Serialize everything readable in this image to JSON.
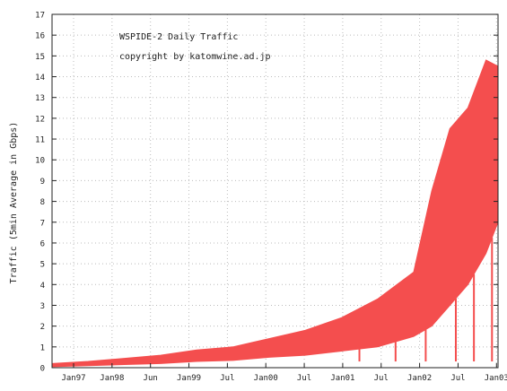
{
  "chart_data": {
    "type": "area",
    "title": "WSPIDE-2 Daily Traffic",
    "subtitle": "copyright by katomwine.ad.jp",
    "xlabel": "",
    "ylabel": "Traffic (5min Average in Gbps)",
    "ylim": [
      0,
      17
    ],
    "yticks": [
      0,
      1,
      2,
      3,
      4,
      5,
      6,
      7,
      8,
      9,
      10,
      11,
      12,
      13,
      14,
      15,
      16,
      17
    ],
    "grid": true,
    "legend": "none",
    "x_tick_labels": [
      "Jan97",
      "Jan98",
      "Jun",
      "Jan99",
      "Jul",
      "Jan00",
      "Jul",
      "Jan01",
      "Jul",
      "Jan02",
      "Jul",
      "Jan03"
    ],
    "series": [
      {
        "kind": "upper-envelope",
        "x": [
          "1997-01",
          "1997-07",
          "1998-01",
          "1998-07",
          "1999-01",
          "1999-07",
          "2000-01",
          "2000-07",
          "2001-01",
          "2001-07",
          "2002-01",
          "2002-04",
          "2002-07",
          "2002-10",
          "2003-01",
          "2003-03"
        ],
        "values": [
          0.2,
          0.3,
          0.45,
          0.6,
          0.85,
          1.0,
          1.4,
          1.8,
          2.4,
          3.3,
          4.6,
          8.5,
          11.5,
          12.5,
          14.8,
          14.5
        ]
      },
      {
        "kind": "lower-envelope",
        "x": [
          "1997-01",
          "1997-07",
          "1998-01",
          "1998-07",
          "1999-01",
          "1999-07",
          "2000-01",
          "2000-07",
          "2001-01",
          "2001-07",
          "2002-01",
          "2002-04",
          "2002-07",
          "2002-10",
          "2003-01",
          "2003-03"
        ],
        "values": [
          0.05,
          0.1,
          0.15,
          0.2,
          0.3,
          0.35,
          0.5,
          0.6,
          0.8,
          1.0,
          1.5,
          2.0,
          3.0,
          4.0,
          5.5,
          7.0
        ]
      }
    ],
    "colors": {
      "fill": "#f44e4e",
      "frame": "#222222",
      "grid": "#bbbbbb"
    }
  }
}
